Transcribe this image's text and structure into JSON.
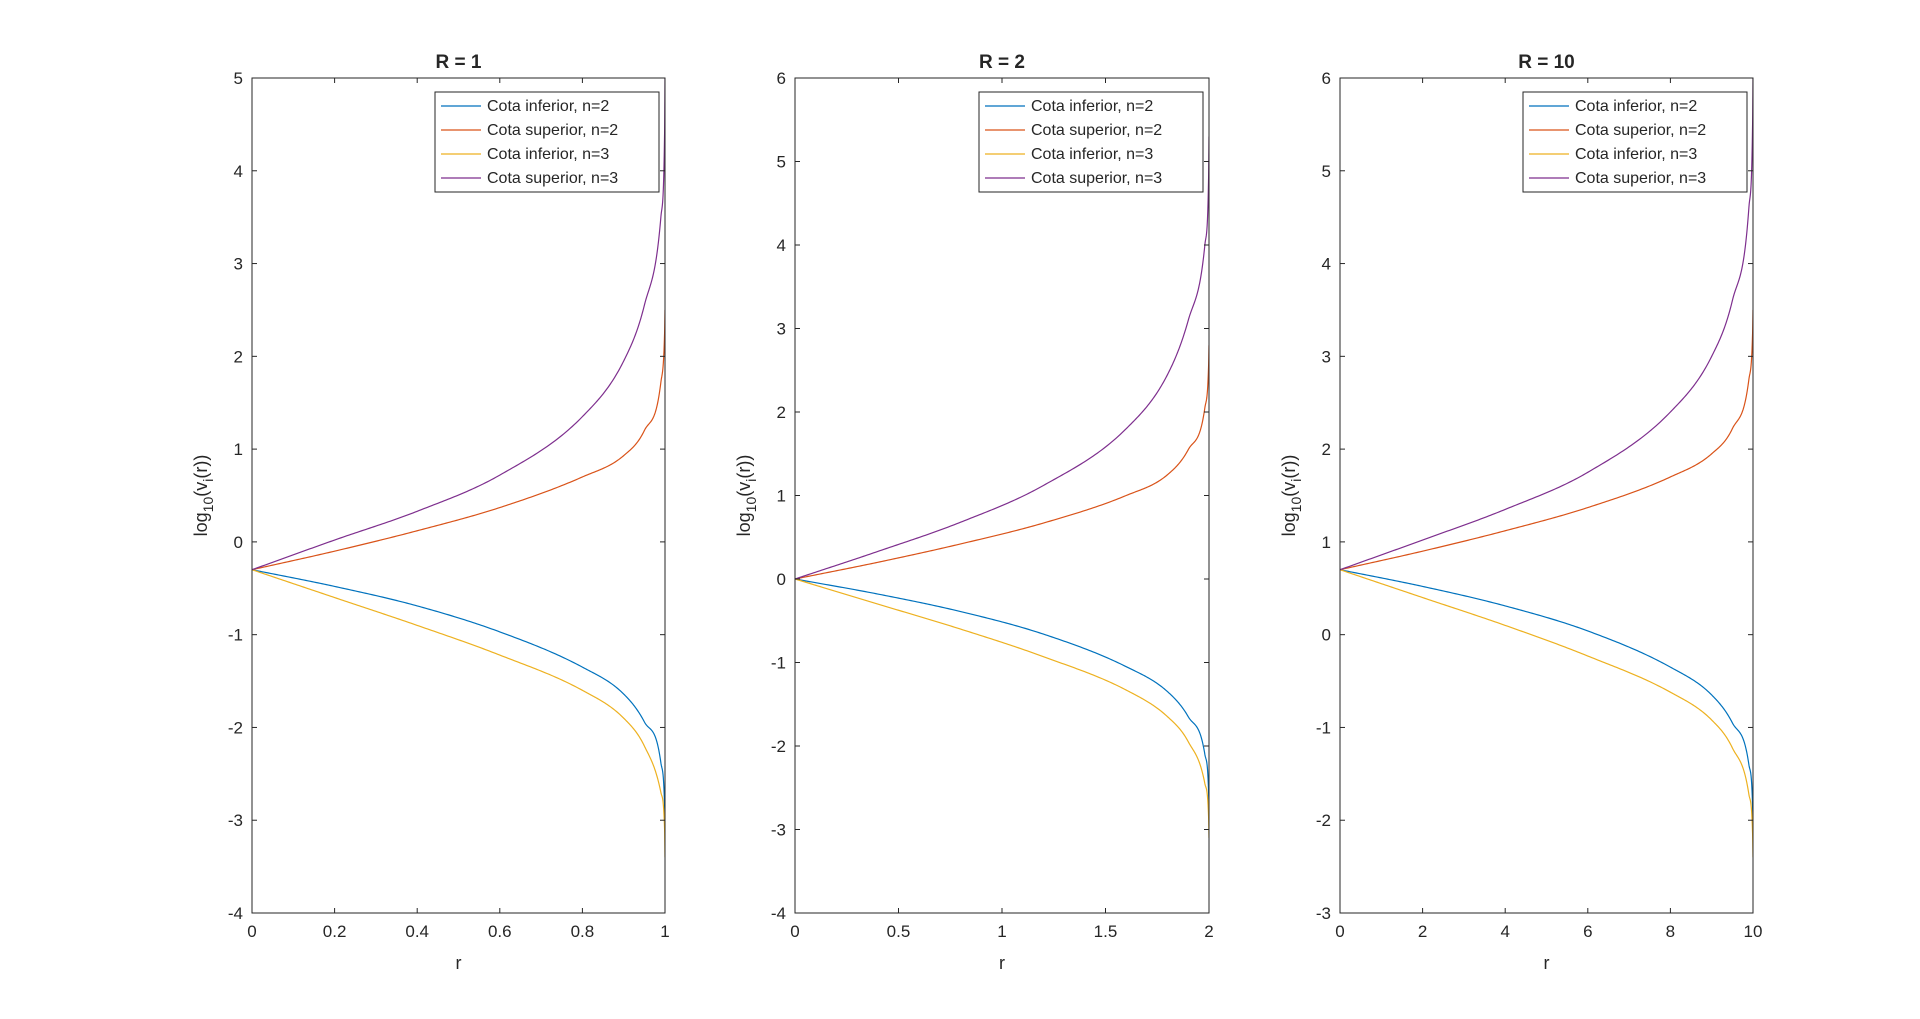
{
  "colors": {
    "series": [
      "#0072BD",
      "#D95319",
      "#EDB120",
      "#7E2F8E"
    ],
    "axes": "#262626",
    "background": "#ffffff"
  },
  "chart_data": [
    {
      "type": "line",
      "title": "R = 1",
      "xlabel": "r",
      "ylabel": {
        "base": "log",
        "sub1": "10",
        "mid": "(v",
        "sub2": "i",
        "tail": "(r))"
      },
      "xlim": [
        0,
        1
      ],
      "ylim": [
        -4,
        5
      ],
      "xticks": [
        0,
        0.2,
        0.4,
        0.6,
        0.8,
        1
      ],
      "xticklabels": [
        "0",
        "0.2",
        "0.4",
        "0.6",
        "0.8",
        "1"
      ],
      "yticks": [
        -4,
        -3,
        -2,
        -1,
        0,
        1,
        2,
        3,
        4,
        5
      ],
      "yticklabels": [
        "-4",
        "-3",
        "-2",
        "-1",
        "0",
        "1",
        "2",
        "3",
        "4",
        "5"
      ],
      "grid": false,
      "legend_position": "top-right",
      "series": [
        {
          "name": "Cota inferior, n=2",
          "x": [
            0,
            0.2,
            0.4,
            0.6,
            0.8,
            0.9,
            0.95,
            0.99,
            0.999,
            1.0
          ],
          "y": [
            -0.3,
            -0.48,
            -0.69,
            -0.97,
            -1.35,
            -1.64,
            -1.94,
            -2.38,
            -2.85,
            -3.1
          ]
        },
        {
          "name": "Cota superior, n=2",
          "x": [
            0,
            0.2,
            0.4,
            0.6,
            0.8,
            0.9,
            0.95,
            0.99,
            0.999,
            1.0
          ],
          "y": [
            -0.3,
            -0.1,
            0.12,
            0.37,
            0.7,
            0.93,
            1.2,
            1.72,
            2.25,
            2.5
          ]
        },
        {
          "name": "Cota inferior, n=3",
          "x": [
            0,
            0.2,
            0.4,
            0.6,
            0.8,
            0.9,
            0.95,
            0.99,
            0.999,
            1.0
          ],
          "y": [
            -0.3,
            -0.6,
            -0.9,
            -1.22,
            -1.6,
            -1.9,
            -2.2,
            -2.7,
            -3.1,
            -3.4
          ]
        },
        {
          "name": "Cota superior, n=3",
          "x": [
            0,
            0.2,
            0.4,
            0.6,
            0.8,
            0.9,
            0.95,
            0.99,
            0.999,
            1.0
          ],
          "y": [
            -0.3,
            0.02,
            0.33,
            0.72,
            1.35,
            1.95,
            2.55,
            3.5,
            4.4,
            5.0
          ]
        }
      ]
    },
    {
      "type": "line",
      "title": "R = 2",
      "xlabel": "r",
      "ylabel": {
        "base": "log",
        "sub1": "10",
        "mid": "(v",
        "sub2": "i",
        "tail": "(r))"
      },
      "xlim": [
        0,
        2
      ],
      "ylim": [
        -4,
        6
      ],
      "xticks": [
        0,
        0.5,
        1,
        1.5,
        2
      ],
      "xticklabels": [
        "0",
        "0.5",
        "1",
        "1.5",
        "2"
      ],
      "yticks": [
        -4,
        -3,
        -2,
        -1,
        0,
        1,
        2,
        3,
        4,
        5,
        6
      ],
      "yticklabels": [
        "-4",
        "-3",
        "-2",
        "-1",
        "0",
        "1",
        "2",
        "3",
        "4",
        "5",
        "6"
      ],
      "grid": false,
      "legend_position": "top-right",
      "series": [
        {
          "name": "Cota inferior, n=2",
          "x": [
            0,
            0.4,
            0.8,
            1.2,
            1.6,
            1.8,
            1.9,
            1.98,
            1.998,
            2.0
          ],
          "y": [
            0.0,
            -0.18,
            -0.39,
            -0.66,
            -1.05,
            -1.35,
            -1.65,
            -2.1,
            -2.55,
            -2.8
          ]
        },
        {
          "name": "Cota superior, n=2",
          "x": [
            0,
            0.4,
            0.8,
            1.2,
            1.6,
            1.8,
            1.9,
            1.98,
            1.998,
            2.0
          ],
          "y": [
            0.0,
            0.2,
            0.42,
            0.67,
            1.0,
            1.25,
            1.55,
            2.05,
            2.55,
            2.8
          ]
        },
        {
          "name": "Cota inferior, n=3",
          "x": [
            0,
            0.4,
            0.8,
            1.2,
            1.6,
            1.8,
            1.9,
            1.98,
            1.998,
            2.0
          ],
          "y": [
            0.0,
            -0.3,
            -0.6,
            -0.93,
            -1.33,
            -1.65,
            -1.95,
            -2.45,
            -2.85,
            -3.1
          ]
        },
        {
          "name": "Cota superior, n=3",
          "x": [
            0,
            0.4,
            0.8,
            1.2,
            1.6,
            1.8,
            1.9,
            1.98,
            1.998,
            2.0
          ],
          "y": [
            0.0,
            0.33,
            0.68,
            1.12,
            1.8,
            2.45,
            3.1,
            4.0,
            4.8,
            5.3
          ]
        }
      ]
    },
    {
      "type": "line",
      "title": "R = 10",
      "xlabel": "r",
      "ylabel": {
        "base": "log",
        "sub1": "10",
        "mid": "(v",
        "sub2": "i",
        "tail": "(r))"
      },
      "xlim": [
        0,
        10
      ],
      "ylim": [
        -3,
        6
      ],
      "xticks": [
        0,
        2,
        4,
        6,
        8,
        10
      ],
      "xticklabels": [
        "0",
        "2",
        "4",
        "6",
        "8",
        "10"
      ],
      "yticks": [
        -3,
        -2,
        -1,
        0,
        1,
        2,
        3,
        4,
        5,
        6
      ],
      "yticklabels": [
        "-3",
        "-2",
        "-1",
        "0",
        "1",
        "2",
        "3",
        "4",
        "5",
        "6"
      ],
      "grid": false,
      "legend_position": "top-right",
      "series": [
        {
          "name": "Cota inferior, n=2",
          "x": [
            0,
            2,
            4,
            6,
            8,
            9,
            9.5,
            9.9,
            9.99,
            10.0
          ],
          "y": [
            0.7,
            0.52,
            0.31,
            0.04,
            -0.35,
            -0.65,
            -0.95,
            -1.4,
            -1.85,
            -2.1
          ]
        },
        {
          "name": "Cota superior, n=2",
          "x": [
            0,
            2,
            4,
            6,
            8,
            9,
            9.5,
            9.9,
            9.99,
            10.0
          ],
          "y": [
            0.7,
            0.9,
            1.12,
            1.37,
            1.7,
            1.95,
            2.22,
            2.75,
            3.25,
            3.5
          ]
        },
        {
          "name": "Cota inferior, n=3",
          "x": [
            0,
            2,
            4,
            6,
            8,
            9,
            9.5,
            9.9,
            9.99,
            10.0
          ],
          "y": [
            0.7,
            0.4,
            0.1,
            -0.23,
            -0.62,
            -0.92,
            -1.22,
            -1.72,
            -2.15,
            -2.4
          ]
        },
        {
          "name": "Cota superior, n=3",
          "x": [
            0,
            2,
            4,
            6,
            8,
            9,
            9.5,
            9.9,
            9.99,
            10.0
          ],
          "y": [
            0.7,
            1.02,
            1.35,
            1.75,
            2.4,
            3.0,
            3.6,
            4.6,
            5.5,
            6.0
          ]
        }
      ]
    }
  ]
}
